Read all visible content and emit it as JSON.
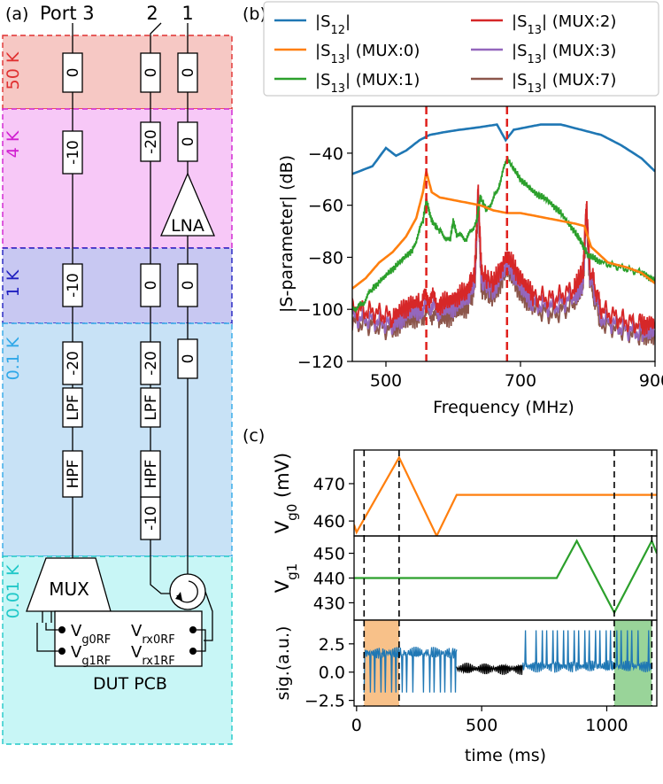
{
  "panel_a": {
    "label": "(a)",
    "ports": [
      "Port 3",
      "2",
      "1"
    ],
    "stages": [
      {
        "name": "50 K",
        "color": "#e03030",
        "fill": "#f6c8c4"
      },
      {
        "name": "4 K",
        "color": "#d020d0",
        "fill": "#f7c8f7"
      },
      {
        "name": "1 K",
        "color": "#2020c0",
        "fill": "#c8c8f2"
      },
      {
        "name": "0.1 K",
        "color": "#30a8e8",
        "fill": "#c8e2f6"
      },
      {
        "name": "0.01 K",
        "color": "#20c8c8",
        "fill": "#c8f6f6"
      }
    ],
    "attenuators": {
      "line3": [
        "0",
        "-10",
        "-10",
        "-20"
      ],
      "line2": [
        "0",
        "-20",
        "0",
        "-20",
        "-10"
      ],
      "line1": [
        "0",
        "0",
        "0",
        "0"
      ]
    },
    "filters": {
      "hpf": "HPF",
      "lpf": "LPF"
    },
    "lna": "LNA",
    "mux": "MUX",
    "dut": {
      "vg0": "V",
      "vg0_sub": "g0RF",
      "vrx0": "V",
      "vrx0_sub": "rx0RF",
      "vg1": "V",
      "vg1_sub": "g1RF",
      "vrx1": "V",
      "vrx1_sub": "rx1RF",
      "title": "DUT PCB"
    }
  },
  "chart_data": [
    {
      "panel": "(b)",
      "type": "line",
      "xlabel": "Frequency (MHz)",
      "ylabel": "|S-parameter| (dB)",
      "xlim": [
        450,
        900
      ],
      "ylim": [
        -120,
        -22
      ],
      "xticks": [
        500,
        700,
        900
      ],
      "yticks": [
        -40,
        -60,
        -80,
        -100,
        -120
      ],
      "vlines": [
        560,
        680
      ],
      "legend": [
        {
          "label": "|S",
          "sub": "12",
          "tail": "|",
          "color": "#1f77b4"
        },
        {
          "label": "|S",
          "sub": "13",
          "tail": "| (MUX:0)",
          "color": "#ff7f0e"
        },
        {
          "label": "|S",
          "sub": "13",
          "tail": "| (MUX:1)",
          "color": "#2ca02c"
        },
        {
          "label": "|S",
          "sub": "13",
          "tail": "| (MUX:2)",
          "color": "#d62728"
        },
        {
          "label": "|S",
          "sub": "13",
          "tail": "| (MUX:3)",
          "color": "#9467bd"
        },
        {
          "label": "|S",
          "sub": "13",
          "tail": "| (MUX:7)",
          "color": "#8c564b"
        }
      ],
      "series": [
        {
          "name": "|S12|",
          "color": "#1f77b4",
          "x": [
            450,
            480,
            500,
            515,
            530,
            550,
            565,
            585,
            610,
            640,
            665,
            678,
            690,
            710,
            730,
            760,
            790,
            820,
            850,
            880,
            900
          ],
          "y": [
            -48,
            -45,
            -38,
            -41,
            -39,
            -35,
            -33,
            -32,
            -31,
            -30,
            -29,
            -35,
            -31,
            -30,
            -29,
            -29,
            -31,
            -33,
            -37,
            -42,
            -47
          ]
        },
        {
          "name": "|S13| (MUX:0)",
          "color": "#ff7f0e",
          "x": [
            450,
            470,
            490,
            510,
            530,
            545,
            555,
            560,
            568,
            580,
            600,
            620,
            640,
            660,
            680,
            700,
            720,
            740,
            760,
            780,
            795,
            805,
            830,
            860,
            880,
            900
          ],
          "y": [
            -92,
            -88,
            -82,
            -78,
            -72,
            -65,
            -55,
            -47,
            -55,
            -57,
            -58,
            -59,
            -60,
            -62,
            -63,
            -63,
            -64,
            -65,
            -66,
            -67,
            -68,
            -76,
            -82,
            -84,
            -86,
            -90
          ]
        },
        {
          "name": "|S13| (MUX:1)",
          "color": "#2ca02c",
          "x": [
            450,
            465,
            480,
            500,
            520,
            540,
            555,
            560,
            568,
            580,
            595,
            600,
            605,
            620,
            635,
            640,
            650,
            665,
            680,
            700,
            720,
            740,
            760,
            780,
            790,
            800,
            820,
            850,
            880,
            900
          ],
          "y": [
            -100,
            -98,
            -92,
            -87,
            -82,
            -77,
            -66,
            -58,
            -66,
            -70,
            -74,
            -66,
            -71,
            -73,
            -66,
            -57,
            -62,
            -55,
            -42,
            -50,
            -55,
            -58,
            -63,
            -70,
            -74,
            -79,
            -82,
            -84,
            -86,
            -89
          ]
        },
        {
          "name": "|S13| (MUX:2)",
          "color": "#d62728",
          "x": [
            450,
            480,
            510,
            530,
            550,
            565,
            580,
            600,
            620,
            632,
            637,
            642,
            660,
            680,
            700,
            720,
            750,
            780,
            793,
            798,
            803,
            820,
            850,
            880,
            900
          ],
          "y": [
            -100,
            -101,
            -103,
            -99,
            -97,
            -95,
            -98,
            -96,
            -93,
            -86,
            -54,
            -86,
            -90,
            -79,
            -88,
            -95,
            -96,
            -92,
            -86,
            -60,
            -84,
            -100,
            -104,
            -106,
            -105
          ]
        },
        {
          "name": "|S13| (MUX:3)",
          "color": "#9467bd",
          "x": [
            450,
            480,
            510,
            530,
            550,
            565,
            580,
            600,
            620,
            632,
            637,
            642,
            660,
            680,
            700,
            720,
            750,
            780,
            793,
            798,
            803,
            820,
            850,
            880,
            900
          ],
          "y": [
            -103,
            -104,
            -106,
            -102,
            -100,
            -98,
            -101,
            -99,
            -96,
            -89,
            -56,
            -89,
            -93,
            -82,
            -91,
            -98,
            -99,
            -95,
            -89,
            -62,
            -87,
            -103,
            -107,
            -109,
            -108
          ]
        },
        {
          "name": "|S13| (MUX:7)",
          "color": "#8c564b",
          "x": [
            450,
            480,
            510,
            530,
            550,
            565,
            580,
            600,
            620,
            632,
            637,
            642,
            660,
            680,
            700,
            720,
            750,
            780,
            793,
            798,
            803,
            820,
            850,
            880,
            900
          ],
          "y": [
            -105,
            -106,
            -108,
            -104,
            -103,
            -101,
            -104,
            -102,
            -99,
            -92,
            -58,
            -92,
            -96,
            -84,
            -94,
            -100,
            -102,
            -98,
            -91,
            -64,
            -90,
            -105,
            -108,
            -110,
            -110
          ]
        }
      ]
    },
    {
      "panel": "(c)",
      "type": "line",
      "xlabel": "time (ms)",
      "xlim": [
        -10,
        1200
      ],
      "xticks": [
        0,
        500,
        1000
      ],
      "vlines": [
        30,
        170,
        1030,
        1180
      ],
      "subplots": [
        {
          "ylabel": "V",
          "ylabel_sub": "g0",
          "ylabel_tail": " (mV)",
          "ylim": [
            456,
            479
          ],
          "yticks": [
            460,
            470
          ],
          "color": "#ff7f0e",
          "x": [
            -10,
            0,
            170,
            320,
            400,
            1200
          ],
          "y": [
            459,
            457,
            477,
            456,
            467,
            467
          ]
        },
        {
          "ylabel": "V",
          "ylabel_sub": "g1",
          "ylabel_tail": "",
          "ylim": [
            423,
            457
          ],
          "yticks": [
            430,
            440,
            450
          ],
          "color": "#2ca02c",
          "x": [
            -10,
            800,
            880,
            1030,
            1180,
            1200
          ],
          "y": [
            440,
            440,
            455,
            426,
            455,
            450
          ]
        },
        {
          "ylabel": "sig.(a.u.)",
          "ylim": [
            -3,
            4.6
          ],
          "yticks": [
            2.5,
            0.0,
            -2.5
          ],
          "color": "#1f77b4",
          "spans": [
            {
              "from": 30,
              "to": 170,
              "color": "#f6b26b"
            },
            {
              "from": 1030,
              "to": 1180,
              "color": "#7fc97f"
            }
          ],
          "segments": [
            {
              "from": 30,
              "to": 400,
              "level": 1.7,
              "color": "#1f77b4"
            },
            {
              "from": 400,
              "to": 665,
              "level": 0.3,
              "color": "#000000"
            },
            {
              "from": 665,
              "to": 1180,
              "level": 0.5,
              "color": "#1f77b4"
            }
          ]
        }
      ]
    }
  ]
}
